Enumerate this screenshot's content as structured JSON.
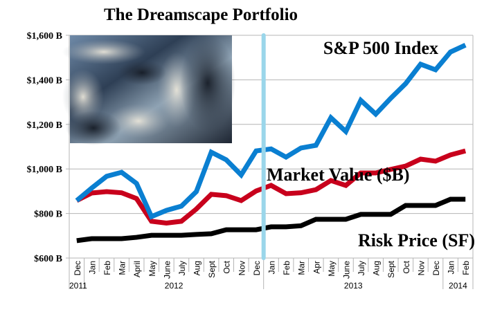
{
  "chart_data": {
    "type": "line",
    "title": "The Dreamscape Portfolio",
    "xlabel": "",
    "ylabel": "",
    "ylim": [
      600,
      1600
    ],
    "yticks": [
      600,
      800,
      1000,
      1200,
      1400,
      1600
    ],
    "ytick_labels": [
      "$600 B",
      "$800 B",
      "$1,000 B",
      "$1,200 B",
      "$1,400 B",
      "$1,600 B"
    ],
    "grid": true,
    "categories": [
      "Dec",
      "Jan",
      "Feb",
      "Mar",
      "April",
      "May",
      "June",
      "July",
      "Aug",
      "Sept",
      "Oct",
      "Nov",
      "Dec",
      "Jan",
      "Feb",
      "Mar",
      "Apr",
      "May",
      "June",
      "July",
      "Aug",
      "Sept",
      "Oct",
      "Nov",
      "Dec",
      "Jan",
      "Feb"
    ],
    "year_groups": [
      {
        "label": "2011",
        "start": 0,
        "end": 0
      },
      {
        "label": "2012",
        "start": 1,
        "end": 12
      },
      {
        "label": "2013",
        "start": 13,
        "end": 24
      },
      {
        "label": "2014",
        "start": 25,
        "end": 26
      }
    ],
    "series": [
      {
        "name": "S&P 500 Index",
        "color": "#0a7fd1",
        "values": [
          858,
          914,
          967,
          985,
          935,
          786,
          814,
          833,
          898,
          1075,
          1041,
          973,
          1081,
          1090,
          1053,
          1094,
          1106,
          1230,
          1168,
          1308,
          1246,
          1317,
          1383,
          1470,
          1445,
          1525,
          1556
        ]
      },
      {
        "name": "Market Value ($B)",
        "color": "#c8001c",
        "values": [
          858,
          892,
          898,
          893,
          867,
          765,
          757,
          765,
          820,
          886,
          880,
          858,
          901,
          926,
          889,
          893,
          907,
          948,
          926,
          982,
          982,
          998,
          1013,
          1044,
          1035,
          1063,
          1081
        ]
      },
      {
        "name": "Risk Price (SF)",
        "color": "#000000",
        "values": [
          678,
          687,
          687,
          687,
          693,
          702,
          702,
          702,
          706,
          709,
          727,
          727,
          727,
          740,
          740,
          745,
          774,
          774,
          774,
          796,
          796,
          796,
          836,
          836,
          836,
          864,
          864
        ]
      }
    ],
    "annotations": [
      {
        "text": "S&P 500 Index",
        "series": 0
      },
      {
        "text": "Market Value ($B)",
        "series": 1
      },
      {
        "text": "Risk Price (SF)",
        "series": 2
      }
    ],
    "marker_line": {
      "between": [
        "Dec 2012",
        "Jan 2013"
      ],
      "color": "#9ad6ea"
    },
    "inset_image": "clouds-photo"
  }
}
